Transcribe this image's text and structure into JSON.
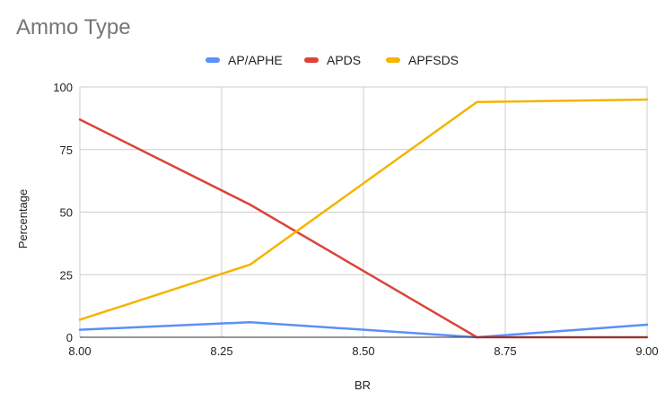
{
  "chart_data": {
    "type": "line",
    "title": "Ammo Type",
    "xlabel": "BR",
    "ylabel": "Percentage",
    "x": [
      8.0,
      8.3,
      8.7,
      9.0
    ],
    "xlim": [
      8.0,
      9.0
    ],
    "ylim": [
      0,
      100
    ],
    "xticks": [
      "8.00",
      "8.25",
      "8.50",
      "8.75",
      "9.00"
    ],
    "yticks": [
      "0",
      "25",
      "50",
      "75",
      "100"
    ],
    "grid": true,
    "legend_position": "top",
    "series": [
      {
        "name": "AP/APHE",
        "color": "#5b8ff9",
        "values": [
          3,
          6,
          0,
          5
        ]
      },
      {
        "name": "APDS",
        "color": "#db4437",
        "values": [
          87,
          53,
          0,
          0
        ]
      },
      {
        "name": "APFSDS",
        "color": "#f4b400",
        "values": [
          7,
          29,
          94,
          95
        ]
      }
    ]
  }
}
